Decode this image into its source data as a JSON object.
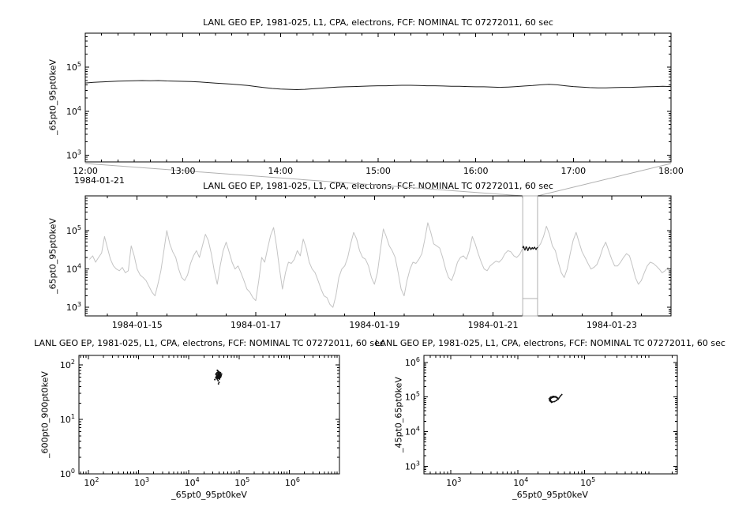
{
  "page": {
    "background": "#ffffff",
    "axis_color": "#000000",
    "overview_accent": "#b0b0b0"
  },
  "chart_data": [
    {
      "type": "line",
      "title": "LANL GEO EP, 1981-025, L1, CPA, electrons, FCF: NOMINAL TC 07272011, 60 sec",
      "ylabel": "_65pt0_95pt0keV",
      "xlabel": "",
      "x_context_label": "1984-01-21",
      "x_axis": {
        "kind": "time-hours",
        "min": 12,
        "max": 18,
        "minor_step": 0.16667,
        "major": [
          {
            "v": 12,
            "label": "12:00"
          },
          {
            "v": 13,
            "label": "13:00"
          },
          {
            "v": 14,
            "label": "14:00"
          },
          {
            "v": 15,
            "label": "15:00"
          },
          {
            "v": 16,
            "label": "16:00"
          },
          {
            "v": 17,
            "label": "17:00"
          },
          {
            "v": 18,
            "label": "18:00"
          }
        ]
      },
      "y_axis": {
        "kind": "log",
        "min": 700,
        "max": 600000,
        "decades": [
          3,
          4,
          5
        ]
      },
      "series": [
        {
          "name": "electron-flux-65-95keV",
          "color": "#1a1a1a",
          "width": 1,
          "value_scale": 1000,
          "x_start": 12,
          "x_step": 0.083333,
          "values": [
            44,
            45.5,
            46.5,
            47.5,
            48.5,
            49,
            49.5,
            50,
            49.5,
            50,
            49,
            48.5,
            48,
            47.5,
            46.5,
            45,
            43.5,
            42.5,
            41.5,
            40,
            38.5,
            36.5,
            34.5,
            33,
            32,
            31.5,
            31,
            31.5,
            32.5,
            33.5,
            34.5,
            35.5,
            36,
            36.5,
            37,
            37.5,
            38,
            38,
            38.5,
            39,
            39,
            38.5,
            38,
            38,
            37.5,
            37,
            37,
            36.5,
            36,
            36,
            35.5,
            35,
            35.5,
            36.5,
            37.5,
            38.5,
            40,
            41,
            40,
            38,
            36.5,
            35.5,
            34.5,
            34,
            34,
            34.5,
            35,
            35,
            35.5,
            36,
            36.5,
            37,
            36.5
          ]
        }
      ]
    },
    {
      "type": "line",
      "title": "LANL GEO EP, 1981-025, L1, CPA, electrons, FCF: NOMINAL TC 07272011, 60 sec",
      "ylabel": "_65pt0_95pt0keV",
      "xlabel": "",
      "x_axis": {
        "kind": "day-of-1984-01",
        "min": 14.125,
        "max": 24.0,
        "minor_step": 0.5,
        "major": [
          {
            "v": 15,
            "label": "1984-01-15"
          },
          {
            "v": 17,
            "label": "1984-01-17"
          },
          {
            "v": 19,
            "label": "1984-01-19"
          },
          {
            "v": 21,
            "label": "1984-01-21"
          },
          {
            "v": 23,
            "label": "1984-01-23"
          }
        ]
      },
      "y_axis": {
        "kind": "log",
        "min": 600,
        "max": 800000,
        "decades": [
          3,
          4,
          5
        ]
      },
      "selection": {
        "from": 21.5,
        "to": 21.75,
        "color": "#b0b0b0"
      },
      "series": [
        {
          "name": "electron-flux-65-95keV-overview",
          "color": "#c4c4c4",
          "width": 1,
          "value_scale": 1000,
          "x_start": 14.2,
          "x_step": 0.05,
          "values": [
            18,
            22,
            15,
            20,
            26,
            70,
            35,
            18,
            12,
            10,
            9,
            11,
            8,
            9,
            40,
            22,
            10,
            7,
            6,
            5,
            3.5,
            2.5,
            2,
            4,
            9,
            30,
            100,
            45,
            28,
            20,
            10,
            6,
            5,
            7,
            14,
            22,
            30,
            20,
            40,
            80,
            55,
            25,
            9,
            4,
            12,
            30,
            50,
            28,
            15,
            10,
            12,
            8,
            5,
            3,
            2.5,
            1.8,
            1.5,
            5,
            20,
            15,
            35,
            75,
            120,
            40,
            10,
            3,
            8,
            15,
            14,
            18,
            30,
            22,
            60,
            35,
            15,
            10,
            8,
            5,
            3,
            2,
            1.8,
            1.2,
            1,
            2,
            6,
            10,
            12,
            20,
            45,
            90,
            60,
            30,
            20,
            18,
            12,
            6,
            4,
            8,
            30,
            110,
            70,
            40,
            30,
            20,
            8,
            3,
            2,
            5,
            10,
            15,
            14,
            18,
            25,
            60,
            160,
            90,
            45,
            40,
            35,
            20,
            10,
            6,
            5,
            8,
            15,
            20,
            22,
            18,
            30,
            70,
            45,
            25,
            15,
            10,
            9,
            12,
            14,
            16,
            15,
            18,
            25,
            30,
            28,
            22,
            20,
            24,
            35,
            38,
            33,
            36,
            34,
            35,
            45,
            70,
            130,
            80,
            40,
            30,
            15,
            8,
            6,
            10,
            25,
            55,
            90,
            50,
            28,
            20,
            14,
            10,
            11,
            13,
            20,
            35,
            50,
            30,
            18,
            12,
            12,
            15,
            20,
            25,
            22,
            12,
            6,
            4,
            5,
            8,
            12,
            15,
            14,
            12,
            10,
            8,
            9,
            11
          ]
        },
        {
          "name": "electron-flux-65-95keV-selected",
          "color": "#111111",
          "width": 1.2,
          "value_scale": 1000,
          "x_start": 21.5,
          "x_step": 0.0125,
          "values": [
            36,
            39,
            34,
            31,
            35,
            38,
            33,
            30,
            34,
            37,
            35,
            32,
            34,
            36,
            33,
            35,
            37,
            34,
            32,
            35,
            36
          ]
        }
      ]
    },
    {
      "type": "scatter",
      "title": "LANL GEO EP, 1981-025, L1, CPA, electrons, FCF: NOMINAL TC 07272011, 60 sec",
      "ylabel": "_600pt0_900pt0keV",
      "xlabel": "_65pt0_95pt0keV",
      "x_axis": {
        "kind": "log",
        "min": 65,
        "max": 10000000,
        "decades": [
          2,
          3,
          4,
          5,
          6
        ]
      },
      "y_axis": {
        "kind": "log",
        "min": 1,
        "max": 150,
        "decades": [
          0,
          1,
          2
        ]
      },
      "series": [
        {
          "name": "flux-correlation-600-900",
          "color": "#111111",
          "marker": 1.0,
          "points": [
            [
              36000,
              62
            ],
            [
              38000,
              58
            ],
            [
              40000,
              65
            ],
            [
              35000,
              60
            ],
            [
              42000,
              63
            ],
            [
              39000,
              70
            ],
            [
              37000,
              55
            ],
            [
              41000,
              57
            ],
            [
              38500,
              68
            ],
            [
              36500,
              72
            ],
            [
              40500,
              60
            ],
            [
              43000,
              66
            ],
            [
              34500,
              58
            ],
            [
              39500,
              75
            ],
            [
              37500,
              64
            ],
            [
              41500,
              70
            ],
            [
              38200,
              52
            ],
            [
              36800,
              61
            ],
            [
              40200,
              67
            ],
            [
              42500,
              59
            ],
            [
              35500,
              66
            ],
            [
              39200,
              73
            ],
            [
              37800,
              57
            ],
            [
              41800,
              62
            ],
            [
              38800,
              69
            ],
            [
              36200,
              63
            ],
            [
              40800,
              55
            ],
            [
              43500,
              61
            ],
            [
              35200,
              70
            ],
            [
              39800,
              66
            ],
            [
              37200,
              59
            ],
            [
              42200,
              68
            ],
            [
              38300,
              74
            ],
            [
              36600,
              56
            ],
            [
              40400,
              62
            ],
            [
              44000,
              64
            ],
            [
              34800,
              67
            ],
            [
              39400,
              60
            ],
            [
              37600,
              71
            ],
            [
              41200,
              65
            ],
            [
              38600,
              63
            ],
            [
              36400,
              58
            ],
            [
              40600,
              69
            ],
            [
              42800,
              72
            ],
            [
              35800,
              61
            ],
            [
              39600,
              57
            ],
            [
              37400,
              66
            ],
            [
              41600,
              73
            ],
            [
              38900,
              59
            ],
            [
              36900,
              64
            ],
            [
              33000,
              54
            ],
            [
              45000,
              68
            ],
            [
              38000,
              78
            ],
            [
              40000,
              48
            ],
            [
              37000,
              80
            ],
            [
              39000,
              45
            ]
          ]
        }
      ]
    },
    {
      "type": "line",
      "title": "LANL GEO EP, 1981-025, L1, CPA, electrons, FCF: NOMINAL TC 07272011, 60 sec",
      "ylabel": "_45pt0_65pt0keV",
      "xlabel": "_65pt0_95pt0keV",
      "x_axis": {
        "kind": "log",
        "min": 400,
        "max": 2400000,
        "decades": [
          3,
          4,
          5
        ]
      },
      "y_axis": {
        "kind": "log",
        "min": 600,
        "max": 1600000,
        "decades": [
          3,
          4,
          5,
          6
        ]
      },
      "series": [
        {
          "name": "flux-correlation-45-65",
          "color": "#111111",
          "width": 1.3,
          "dots": 0.9,
          "points": [
            [
              32000,
              70000
            ],
            [
              30000,
              78000
            ],
            [
              29500,
              90000
            ],
            [
              31000,
              100000
            ],
            [
              34000,
              105000
            ],
            [
              37000,
              103000
            ],
            [
              39000,
              96000
            ],
            [
              39500,
              88000
            ],
            [
              38000,
              80000
            ],
            [
              35500,
              74000
            ],
            [
              33000,
              72000
            ],
            [
              31500,
              76000
            ],
            [
              30500,
              84000
            ],
            [
              31500,
              93000
            ],
            [
              34000,
              99000
            ],
            [
              37000,
              99000
            ],
            [
              39000,
              93000
            ],
            [
              40000,
              86000
            ],
            [
              41500,
              95000
            ],
            [
              43500,
              108000
            ],
            [
              45500,
              118000
            ]
          ]
        }
      ]
    }
  ]
}
